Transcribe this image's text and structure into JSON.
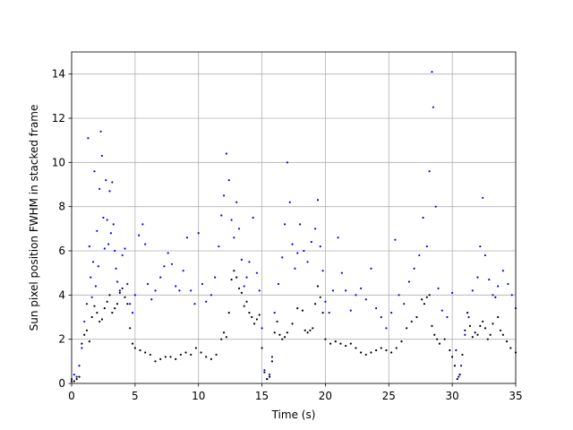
{
  "chart_data": {
    "type": "scatter",
    "title": "",
    "xlabel": "Time (s)",
    "ylabel": "Sun pixel position FWHM in stacked frame",
    "xlim": [
      0,
      35
    ],
    "ylim": [
      0,
      15
    ],
    "xticks": [
      0,
      5,
      10,
      15,
      20,
      25,
      30,
      35
    ],
    "yticks": [
      0,
      2,
      4,
      6,
      8,
      10,
      12,
      14
    ],
    "grid": true,
    "legend": "none",
    "series": [
      {
        "color": "#0000ff",
        "marker": "dot",
        "points": [
          [
            0.0,
            0.2
          ],
          [
            0.2,
            0.4
          ],
          [
            0.4,
            0.3
          ],
          [
            0.6,
            0.8
          ],
          [
            0.8,
            1.6
          ],
          [
            1.0,
            2.8
          ],
          [
            1.2,
            3.6
          ],
          [
            1.3,
            11.1
          ],
          [
            1.4,
            6.2
          ],
          [
            1.5,
            4.8
          ],
          [
            1.6,
            3.9
          ],
          [
            1.7,
            5.5
          ],
          [
            1.8,
            9.6
          ],
          [
            1.9,
            4.4
          ],
          [
            2.0,
            6.9
          ],
          [
            2.1,
            5.3
          ],
          [
            2.2,
            8.8
          ],
          [
            2.3,
            11.4
          ],
          [
            2.4,
            10.3
          ],
          [
            2.5,
            7.5
          ],
          [
            2.6,
            6.1
          ],
          [
            2.7,
            9.2
          ],
          [
            2.8,
            7.4
          ],
          [
            2.9,
            6.3
          ],
          [
            3.0,
            8.7
          ],
          [
            3.1,
            6.8
          ],
          [
            3.2,
            9.1
          ],
          [
            3.3,
            7.2
          ],
          [
            3.4,
            6.0
          ],
          [
            3.5,
            5.2
          ],
          [
            3.6,
            4.6
          ],
          [
            3.8,
            4.2
          ],
          [
            4.0,
            5.8
          ],
          [
            4.2,
            6.1
          ],
          [
            4.4,
            4.5
          ],
          [
            4.6,
            3.6
          ],
          [
            4.8,
            3.2
          ],
          [
            5.0,
            4.0
          ],
          [
            5.3,
            6.7
          ],
          [
            5.6,
            7.2
          ],
          [
            5.8,
            6.3
          ],
          [
            6.0,
            4.5
          ],
          [
            6.3,
            3.8
          ],
          [
            6.6,
            4.2
          ],
          [
            7.0,
            4.8
          ],
          [
            7.3,
            5.3
          ],
          [
            7.6,
            5.9
          ],
          [
            7.9,
            5.4
          ],
          [
            8.2,
            4.4
          ],
          [
            8.5,
            4.2
          ],
          [
            8.8,
            5.1
          ],
          [
            9.1,
            6.6
          ],
          [
            9.4,
            4.2
          ],
          [
            9.7,
            3.6
          ],
          [
            10.0,
            6.8
          ],
          [
            10.3,
            4.5
          ],
          [
            10.6,
            3.7
          ],
          [
            11.0,
            4.0
          ],
          [
            11.3,
            4.8
          ],
          [
            11.6,
            6.2
          ],
          [
            11.8,
            7.6
          ],
          [
            12.0,
            8.5
          ],
          [
            12.2,
            10.4
          ],
          [
            12.4,
            9.2
          ],
          [
            12.6,
            7.4
          ],
          [
            12.8,
            6.6
          ],
          [
            13.0,
            8.2
          ],
          [
            13.2,
            7.0
          ],
          [
            13.4,
            5.6
          ],
          [
            13.6,
            4.4
          ],
          [
            13.8,
            4.8
          ],
          [
            14.0,
            5.5
          ],
          [
            14.3,
            7.5
          ],
          [
            14.6,
            5.0
          ],
          [
            14.8,
            4.2
          ],
          [
            15.0,
            2.5
          ],
          [
            15.2,
            0.6
          ],
          [
            15.4,
            0.2
          ],
          [
            15.6,
            0.4
          ],
          [
            15.8,
            1.2
          ],
          [
            16.0,
            3.2
          ],
          [
            16.3,
            4.5
          ],
          [
            16.6,
            5.7
          ],
          [
            16.8,
            7.2
          ],
          [
            17.0,
            10.0
          ],
          [
            17.2,
            8.2
          ],
          [
            17.4,
            6.3
          ],
          [
            17.6,
            5.2
          ],
          [
            17.8,
            5.9
          ],
          [
            18.0,
            7.2
          ],
          [
            18.3,
            6.0
          ],
          [
            18.6,
            5.5
          ],
          [
            18.9,
            6.4
          ],
          [
            19.2,
            7.0
          ],
          [
            19.4,
            8.3
          ],
          [
            19.6,
            6.2
          ],
          [
            19.8,
            5.1
          ],
          [
            20.0,
            3.7
          ],
          [
            20.3,
            3.2
          ],
          [
            20.6,
            4.2
          ],
          [
            21.0,
            6.6
          ],
          [
            21.3,
            5.0
          ],
          [
            21.6,
            4.2
          ],
          [
            22.0,
            3.3
          ],
          [
            22.4,
            4.0
          ],
          [
            22.8,
            4.3
          ],
          [
            23.2,
            3.8
          ],
          [
            23.6,
            5.2
          ],
          [
            24.0,
            3.4
          ],
          [
            24.4,
            3.0
          ],
          [
            24.8,
            2.5
          ],
          [
            25.2,
            3.2
          ],
          [
            25.5,
            6.5
          ],
          [
            25.8,
            4.0
          ],
          [
            26.2,
            3.6
          ],
          [
            26.6,
            4.6
          ],
          [
            27.0,
            5.2
          ],
          [
            27.4,
            5.8
          ],
          [
            27.7,
            7.5
          ],
          [
            28.0,
            6.2
          ],
          [
            28.2,
            9.6
          ],
          [
            28.4,
            14.1
          ],
          [
            28.5,
            12.5
          ],
          [
            28.7,
            8.0
          ],
          [
            28.9,
            4.3
          ],
          [
            29.2,
            3.3
          ],
          [
            29.6,
            3.0
          ],
          [
            30.0,
            4.1
          ],
          [
            30.3,
            1.5
          ],
          [
            30.5,
            0.3
          ],
          [
            30.7,
            0.8
          ],
          [
            31.0,
            2.2
          ],
          [
            31.3,
            3.0
          ],
          [
            31.6,
            4.2
          ],
          [
            32.0,
            4.8
          ],
          [
            32.2,
            6.2
          ],
          [
            32.4,
            8.4
          ],
          [
            32.6,
            5.8
          ],
          [
            32.9,
            4.7
          ],
          [
            33.2,
            4.0
          ],
          [
            33.6,
            4.4
          ],
          [
            34.0,
            5.1
          ],
          [
            34.4,
            4.5
          ],
          [
            34.7,
            4.0
          ],
          [
            35.0,
            3.4
          ]
        ]
      },
      {
        "color": "#000000",
        "marker": "dot",
        "points": [
          [
            0.0,
            0.1
          ],
          [
            0.2,
            0.1
          ],
          [
            0.4,
            0.2
          ],
          [
            0.6,
            0.3
          ],
          [
            0.8,
            1.8
          ],
          [
            1.0,
            2.2
          ],
          [
            1.2,
            2.4
          ],
          [
            1.4,
            1.9
          ],
          [
            1.6,
            3.0
          ],
          [
            1.8,
            3.5
          ],
          [
            2.0,
            3.2
          ],
          [
            2.2,
            2.8
          ],
          [
            2.4,
            2.9
          ],
          [
            2.6,
            3.4
          ],
          [
            2.8,
            3.7
          ],
          [
            3.0,
            4.0
          ],
          [
            3.2,
            3.2
          ],
          [
            3.4,
            3.4
          ],
          [
            3.6,
            3.6
          ],
          [
            3.8,
            4.1
          ],
          [
            4.0,
            4.3
          ],
          [
            4.2,
            3.9
          ],
          [
            4.4,
            3.6
          ],
          [
            4.6,
            2.5
          ],
          [
            4.8,
            1.8
          ],
          [
            5.0,
            1.6
          ],
          [
            5.4,
            1.5
          ],
          [
            5.8,
            1.4
          ],
          [
            6.2,
            1.3
          ],
          [
            6.6,
            1.0
          ],
          [
            7.0,
            1.1
          ],
          [
            7.4,
            1.2
          ],
          [
            7.8,
            1.2
          ],
          [
            8.2,
            1.1
          ],
          [
            8.6,
            1.3
          ],
          [
            9.0,
            1.4
          ],
          [
            9.4,
            1.3
          ],
          [
            9.8,
            1.6
          ],
          [
            10.2,
            1.4
          ],
          [
            10.6,
            1.2
          ],
          [
            11.0,
            1.1
          ],
          [
            11.4,
            1.3
          ],
          [
            11.8,
            2.0
          ],
          [
            12.0,
            2.3
          ],
          [
            12.2,
            2.1
          ],
          [
            12.4,
            3.2
          ],
          [
            12.6,
            4.7
          ],
          [
            12.8,
            5.1
          ],
          [
            13.0,
            4.8
          ],
          [
            13.2,
            4.3
          ],
          [
            13.4,
            4.1
          ],
          [
            13.6,
            3.5
          ],
          [
            13.8,
            3.7
          ],
          [
            14.0,
            3.2
          ],
          [
            14.2,
            3.0
          ],
          [
            14.4,
            2.7
          ],
          [
            14.6,
            2.9
          ],
          [
            14.8,
            3.1
          ],
          [
            15.0,
            1.6
          ],
          [
            15.2,
            0.5
          ],
          [
            15.4,
            0.2
          ],
          [
            15.6,
            0.3
          ],
          [
            15.8,
            1.0
          ],
          [
            16.0,
            2.3
          ],
          [
            16.2,
            2.8
          ],
          [
            16.4,
            2.2
          ],
          [
            16.6,
            2.0
          ],
          [
            16.8,
            2.1
          ],
          [
            17.0,
            2.3
          ],
          [
            17.4,
            2.7
          ],
          [
            17.8,
            3.4
          ],
          [
            18.2,
            3.3
          ],
          [
            18.4,
            2.4
          ],
          [
            18.6,
            2.3
          ],
          [
            18.8,
            2.4
          ],
          [
            19.0,
            2.5
          ],
          [
            19.2,
            3.6
          ],
          [
            19.4,
            4.4
          ],
          [
            19.6,
            3.9
          ],
          [
            19.8,
            3.2
          ],
          [
            20.0,
            2.0
          ],
          [
            20.4,
            1.8
          ],
          [
            20.8,
            1.9
          ],
          [
            21.2,
            1.8
          ],
          [
            21.6,
            1.7
          ],
          [
            22.0,
            1.8
          ],
          [
            22.4,
            1.6
          ],
          [
            22.8,
            1.4
          ],
          [
            23.2,
            1.3
          ],
          [
            23.6,
            1.4
          ],
          [
            24.0,
            1.5
          ],
          [
            24.4,
            1.6
          ],
          [
            24.8,
            1.5
          ],
          [
            25.2,
            1.4
          ],
          [
            25.6,
            1.6
          ],
          [
            26.0,
            1.9
          ],
          [
            26.4,
            2.5
          ],
          [
            26.8,
            2.8
          ],
          [
            27.2,
            3.0
          ],
          [
            27.6,
            3.8
          ],
          [
            27.8,
            3.6
          ],
          [
            28.0,
            3.9
          ],
          [
            28.2,
            4.0
          ],
          [
            28.4,
            2.6
          ],
          [
            28.6,
            2.2
          ],
          [
            28.8,
            2.0
          ],
          [
            29.0,
            1.8
          ],
          [
            29.4,
            2.0
          ],
          [
            29.8,
            1.5
          ],
          [
            30.0,
            1.2
          ],
          [
            30.2,
            0.8
          ],
          [
            30.4,
            0.2
          ],
          [
            30.6,
            0.4
          ],
          [
            30.8,
            1.3
          ],
          [
            31.0,
            2.4
          ],
          [
            31.2,
            3.2
          ],
          [
            31.4,
            2.6
          ],
          [
            31.6,
            2.1
          ],
          [
            31.8,
            2.3
          ],
          [
            32.0,
            2.2
          ],
          [
            32.2,
            2.6
          ],
          [
            32.4,
            2.8
          ],
          [
            32.6,
            2.5
          ],
          [
            32.8,
            2.0
          ],
          [
            33.0,
            2.2
          ],
          [
            33.2,
            2.7
          ],
          [
            33.4,
            3.9
          ],
          [
            33.6,
            3.0
          ],
          [
            33.8,
            2.4
          ],
          [
            34.0,
            2.2
          ],
          [
            34.3,
            1.9
          ],
          [
            34.6,
            1.6
          ],
          [
            35.0,
            1.4
          ]
        ]
      }
    ]
  }
}
